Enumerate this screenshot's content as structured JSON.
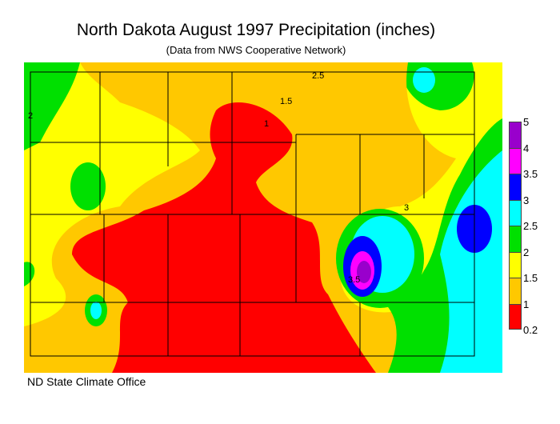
{
  "title": "North Dakota August 1997 Precipitation (inches)",
  "subtitle": "(Data from NWS Cooperative Network)",
  "credit": "ND State Climate Office",
  "legend": {
    "labels": [
      "5",
      "4",
      "3.5",
      "3",
      "2.5",
      "2",
      "1.5",
      "1",
      "0.2"
    ],
    "colors": [
      "#9900cc",
      "#ff00ff",
      "#0000ff",
      "#00ffff",
      "#00e000",
      "#ffff00",
      "#ffc800",
      "#ff0000"
    ]
  },
  "contour_labels": [
    "2",
    "1.5",
    "1",
    "2.5",
    "3",
    "3.5"
  ]
}
